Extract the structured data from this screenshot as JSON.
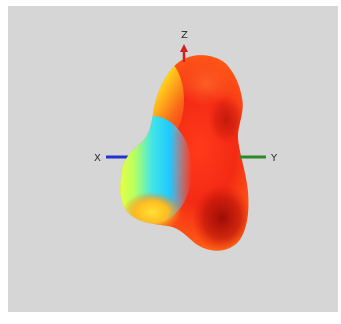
{
  "axes": {
    "x_label": "X",
    "y_label": "Y",
    "z_label": "Z",
    "x_color": "#2233cc",
    "y_color": "#2a8a2a",
    "z_color": "#d32020"
  },
  "colors": {
    "background": "#d6d6d6",
    "colormap": [
      "#1ec8ff",
      "#58f0c0",
      "#ffff33",
      "#ffaa1a",
      "#ff4a1a",
      "#ea1c10",
      "#b31208"
    ]
  }
}
